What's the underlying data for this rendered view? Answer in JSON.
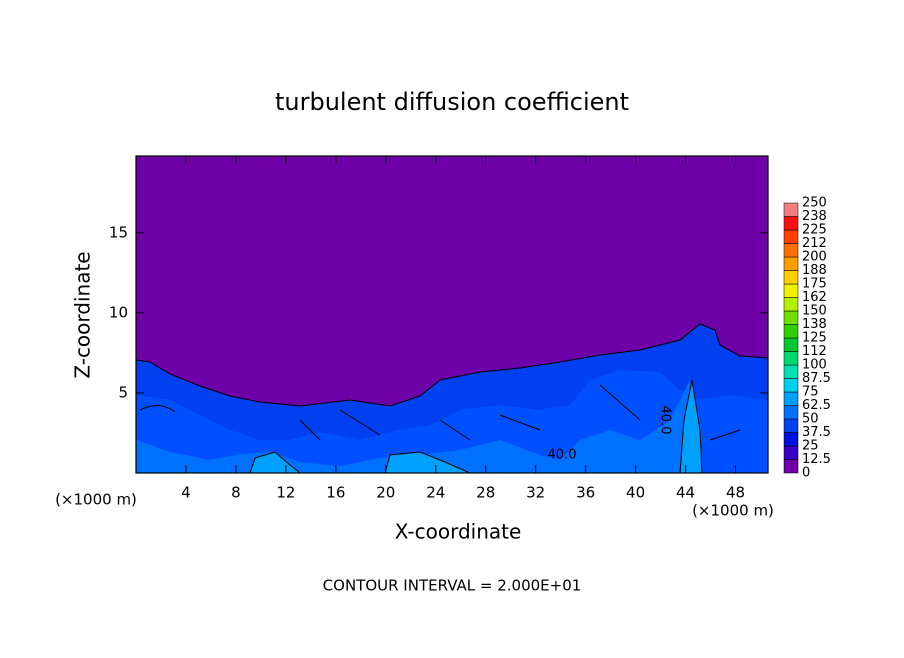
{
  "chart_data": {
    "type": "contour",
    "title": "turbulent diffusion coefficient",
    "x_label": "X-coordinate",
    "y_label": "Z-coordinate",
    "x_unit_label": "(×1000 m)",
    "y_unit_label": "(×1000 m)",
    "note": "CONTOUR INTERVAL = 2.000E+01",
    "xlim": [
      0,
      50.6
    ],
    "xticks": [
      4,
      8,
      12,
      16,
      20,
      24,
      28,
      32,
      36,
      40,
      44,
      48
    ],
    "ylim": [
      0,
      19.8
    ],
    "yticks": [
      5,
      10,
      15
    ],
    "levels": [
      0,
      12.5,
      25,
      37.5,
      50,
      62.5,
      75,
      87.5,
      100,
      112,
      125,
      138,
      150,
      162,
      175,
      188,
      200,
      212,
      225,
      238,
      250
    ],
    "colors": [
      "#6e00a8",
      "#3800c8",
      "#0010e0",
      "#0040f0",
      "#0070ff",
      "#00a0ff",
      "#00d0f0",
      "#00e0b0",
      "#00d870",
      "#00c830",
      "#30d000",
      "#70e000",
      "#b0f000",
      "#f0f000",
      "#ffd000",
      "#ffa000",
      "#ff7000",
      "#ff4000",
      "#ff1010",
      "#f08080"
    ],
    "contour_labels": [
      {
        "value": 40,
        "label": "40.0"
      },
      {
        "value": 40,
        "label": "40.0"
      }
    ]
  }
}
